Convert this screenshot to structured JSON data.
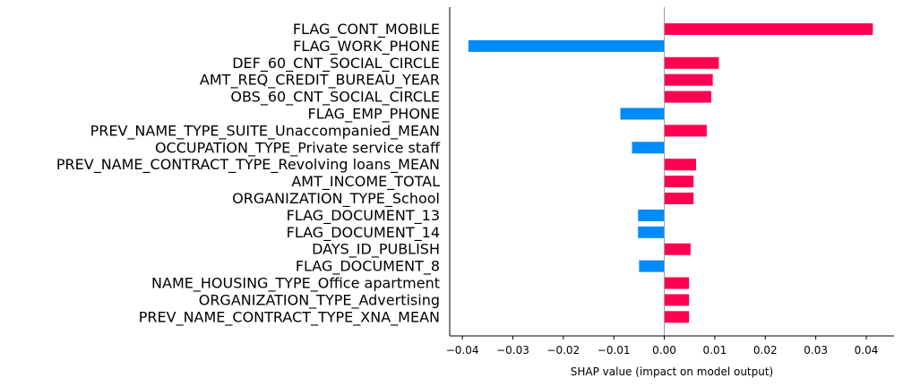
{
  "chart_data": {
    "type": "bar",
    "orientation": "horizontal",
    "xlabel": "SHAP value (impact on model output)",
    "xlim": [
      -0.0425,
      0.0455
    ],
    "xticks": [
      "−0.04",
      "−0.03",
      "−0.02",
      "−0.01",
      "0.00",
      "0.01",
      "0.02",
      "0.03",
      "0.04"
    ],
    "xtick_values": [
      -0.04,
      -0.03,
      -0.02,
      -0.01,
      0.0,
      0.01,
      0.02,
      0.03,
      0.04
    ],
    "grid": false,
    "colors": {
      "positive": "#ff0051",
      "negative": "#008bfb"
    },
    "categories": [
      "FLAG_CONT_MOBILE",
      "FLAG_WORK_PHONE",
      "DEF_60_CNT_SOCIAL_CIRCLE",
      "AMT_REQ_CREDIT_BUREAU_YEAR",
      "OBS_60_CNT_SOCIAL_CIRCLE",
      "FLAG_EMP_PHONE",
      "PREV_NAME_TYPE_SUITE_Unaccompanied_MEAN",
      "OCCUPATION_TYPE_Private service staff",
      "PREV_NAME_CONTRACT_TYPE_Revolving loans_MEAN",
      "AMT_INCOME_TOTAL",
      "ORGANIZATION_TYPE_School",
      "FLAG_DOCUMENT_13",
      "FLAG_DOCUMENT_14",
      "DAYS_ID_PUBLISH",
      "FLAG_DOCUMENT_8",
      "NAME_HOUSING_TYPE_Office apartment",
      "ORGANIZATION_TYPE_Advertising",
      "PREV_NAME_CONTRACT_TYPE_XNA_MEAN"
    ],
    "values": [
      0.0413,
      -0.0388,
      0.0108,
      0.0096,
      0.0093,
      -0.0087,
      0.0084,
      -0.0064,
      0.0063,
      0.0058,
      0.0058,
      -0.0052,
      -0.0052,
      0.0052,
      -0.005,
      0.0049,
      0.0049,
      0.0049
    ]
  }
}
